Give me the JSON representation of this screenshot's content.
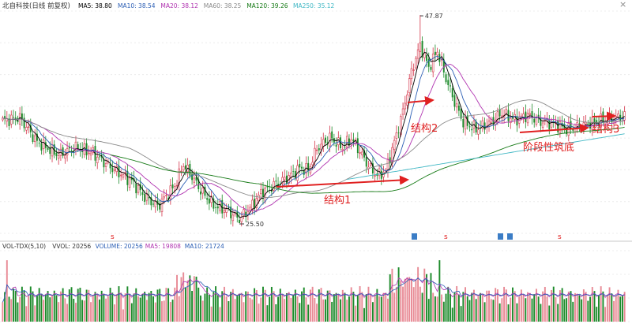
{
  "header": {
    "title": "北自科技(日线 前复权)",
    "ma_labels": [
      {
        "text": "MA5: 38.80",
        "color": "#000000"
      },
      {
        "text": "MA10: 38.54",
        "color": "#2c5fb5"
      },
      {
        "text": "MA20: 38.12",
        "color": "#b033b0"
      },
      {
        "text": "MA60: 38.25",
        "color": "#8a8a8a"
      },
      {
        "text": "MA120: 39.26",
        "color": "#167a16"
      },
      {
        "text": "MA250: 35.12",
        "color": "#3fb7c4"
      }
    ],
    "close_label": "×"
  },
  "volume_header": {
    "labels": [
      {
        "text": "VOL-TDX(5,10)",
        "color": "#333333"
      },
      {
        "text": "VVOL: 20256",
        "color": "#333333"
      },
      {
        "text": "VOLUME: 20256",
        "color": "#2c5fb5"
      },
      {
        "text": "MA5: 19808",
        "color": "#b033b0"
      },
      {
        "text": "MA10: 21724",
        "color": "#2c5fb5"
      }
    ]
  },
  "annotations": {
    "high_label": "47.87",
    "low_label": "25.50",
    "structure1": "结构1",
    "structure2": "结构2",
    "structure3": "结构3",
    "phase_bottom": "阶段性筑底"
  },
  "markers": {
    "s_label": "s"
  },
  "chart_data": {
    "type": "candlestick",
    "high": 47.87,
    "low": 25.5,
    "price_range": [
      24.4,
      48.3
    ],
    "colors": {
      "up": "#d4354a",
      "down": "#1c8a2a",
      "arrow": "#e02020",
      "text_red": "#e02020"
    }
  }
}
